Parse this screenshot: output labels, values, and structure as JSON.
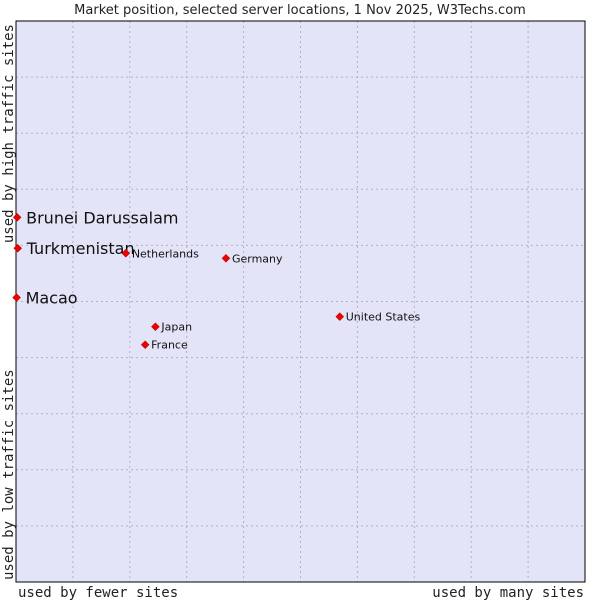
{
  "chart_data": {
    "type": "scatter",
    "title": "Market position, selected server locations, 1 Nov 2025, W3Techs.com",
    "xlabel_left": "used by fewer sites",
    "xlabel_right": "used by many sites",
    "ylabel_top": "used by high traffic sites",
    "ylabel_bottom": "used by low traffic sites",
    "xlim": [
      0,
      100
    ],
    "ylim": [
      0,
      100
    ],
    "grid": true,
    "colors": {
      "plot_bg": "#e4e4f8",
      "grid": "#b0b0c8",
      "frame": "#000000",
      "marker": "#ee0000"
    },
    "points": [
      {
        "name": "Brunei Darussalam",
        "x": 0.2,
        "y": 65.0,
        "emphasis": true
      },
      {
        "name": "Turkmenistan",
        "x": 0.3,
        "y": 59.5,
        "emphasis": true
      },
      {
        "name": "Macao",
        "x": 0.1,
        "y": 50.7,
        "emphasis": true
      },
      {
        "name": "Netherlands",
        "x": 19.3,
        "y": 58.6,
        "emphasis": false
      },
      {
        "name": "Germany",
        "x": 36.9,
        "y": 57.7,
        "emphasis": false
      },
      {
        "name": "United States",
        "x": 56.9,
        "y": 47.3,
        "emphasis": false
      },
      {
        "name": "Japan",
        "x": 24.5,
        "y": 45.5,
        "emphasis": false
      },
      {
        "name": "France",
        "x": 22.7,
        "y": 42.3,
        "emphasis": false
      }
    ]
  }
}
